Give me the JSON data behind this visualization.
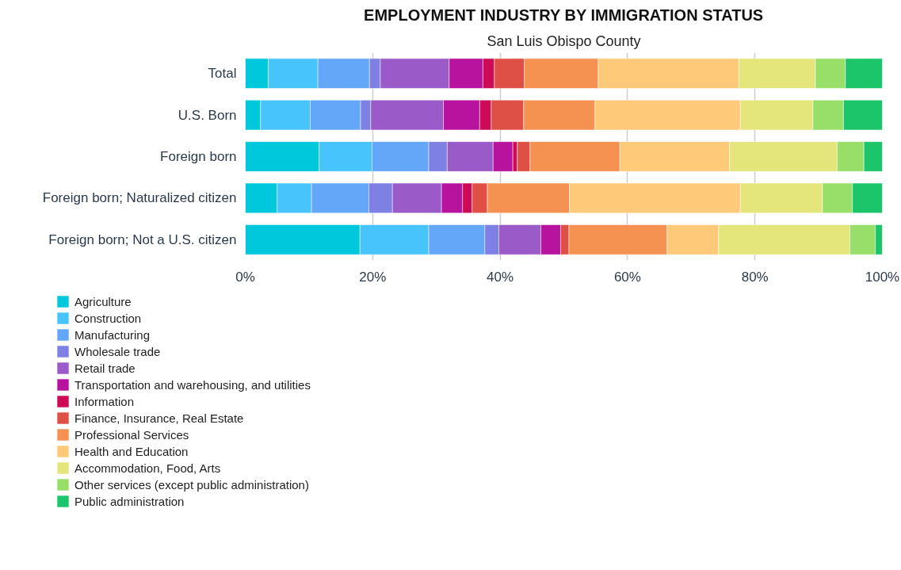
{
  "chart_data": {
    "type": "bar",
    "orientation": "horizontal",
    "stacked": true,
    "title": "EMPLOYMENT INDUSTRY BY IMMIGRATION STATUS",
    "subtitle": "San Luis Obispo County",
    "categories": [
      "Total",
      "U.S. Born",
      "Foreign born",
      "Foreign born; Naturalized citizen",
      "Foreign born; Not a U.S. citizen"
    ],
    "xlim": [
      0,
      100
    ],
    "xticks": [
      {
        "value": 0,
        "label": "0%"
      },
      {
        "value": 20,
        "label": "20%"
      },
      {
        "value": 40,
        "label": "40%"
      },
      {
        "value": 60,
        "label": "60%"
      },
      {
        "value": 80,
        "label": "80%"
      },
      {
        "value": 100,
        "label": "100%"
      }
    ],
    "grid": "x",
    "legend": "bottom left",
    "series": [
      {
        "name": "Agriculture",
        "color": "#00c8dc",
        "values": [
          3.6,
          2.4,
          11.6,
          5.0,
          18.0
        ]
      },
      {
        "name": "Construction",
        "color": "#48c4fc",
        "values": [
          7.8,
          7.8,
          8.3,
          5.4,
          10.8
        ]
      },
      {
        "name": "Manufacturing",
        "color": "#64a6f8",
        "values": [
          8.1,
          7.9,
          8.9,
          9.0,
          8.8
        ]
      },
      {
        "name": "Wholesale trade",
        "color": "#7f80e4",
        "values": [
          1.7,
          1.6,
          2.9,
          3.7,
          2.2
        ]
      },
      {
        "name": "Retail trade",
        "color": "#9a5ac8",
        "values": [
          10.8,
          11.4,
          7.2,
          7.7,
          6.6
        ]
      },
      {
        "name": "Transportation and warehousing, and utilities",
        "color": "#b8139e",
        "values": [
          5.3,
          5.7,
          3.1,
          3.3,
          3.1
        ]
      },
      {
        "name": "Information",
        "color": "#cc0a55",
        "values": [
          1.8,
          1.8,
          0.7,
          1.5,
          null
        ]
      },
      {
        "name": "Finance, Insurance, Real Estate",
        "color": "#de5045",
        "values": [
          4.7,
          5.1,
          2.0,
          2.4,
          1.3
        ]
      },
      {
        "name": "Professional Services",
        "color": "#f59252",
        "values": [
          11.6,
          11.2,
          14.1,
          12.9,
          15.4
        ]
      },
      {
        "name": "Health and Education",
        "color": "#fec978",
        "values": [
          22.1,
          22.8,
          17.2,
          26.8,
          8.1
        ]
      },
      {
        "name": "Accommodation, Food, Arts",
        "color": "#e4e67c",
        "values": [
          12.0,
          11.4,
          16.9,
          12.9,
          20.6
        ]
      },
      {
        "name": "Other services (except public administration)",
        "color": "#98df6a",
        "values": [
          4.7,
          4.8,
          4.2,
          4.7,
          4.0
        ]
      },
      {
        "name": "Public administration",
        "color": "#1cc46a",
        "values": [
          5.8,
          6.1,
          2.9,
          4.7,
          1.1
        ]
      }
    ]
  }
}
